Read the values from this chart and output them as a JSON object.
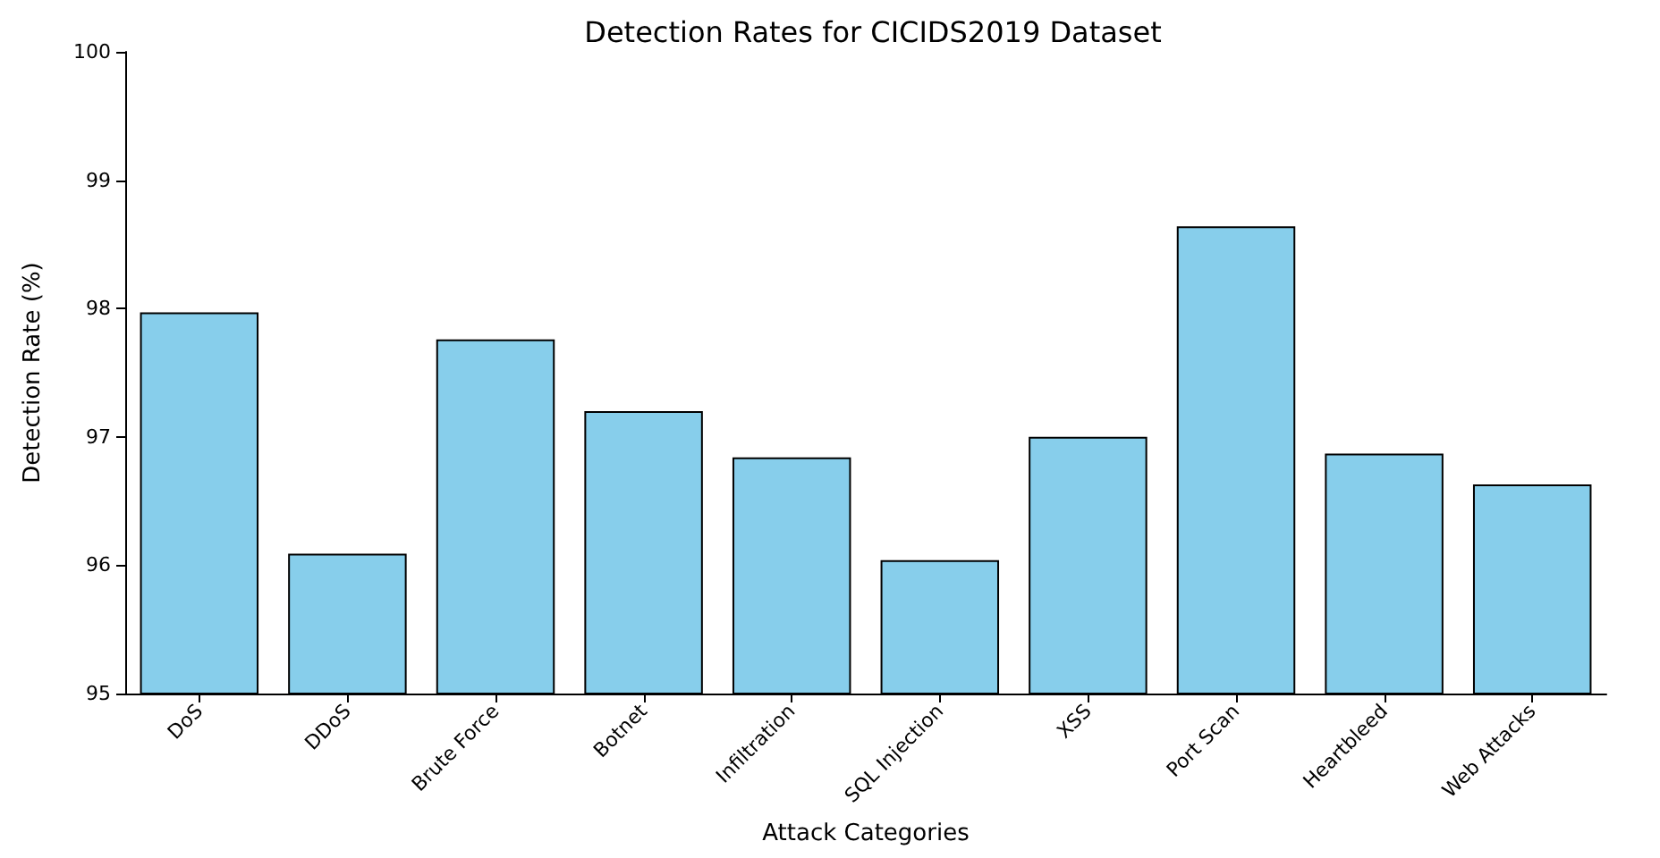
{
  "chart_data": {
    "type": "bar",
    "title": "Detection Rates for CICIDS2019 Dataset",
    "xlabel": "Attack Categories",
    "ylabel": "Detection Rate (%)",
    "categories": [
      "DoS",
      "DDoS",
      "Brute Force",
      "Botnet",
      "Infiltration",
      "SQL Injection",
      "XSS",
      "Port Scan",
      "Heartbleed",
      "Web Attacks"
    ],
    "values": [
      97.97,
      96.09,
      97.76,
      97.2,
      96.84,
      96.04,
      97.0,
      98.64,
      96.87,
      96.63
    ],
    "color": "#87ceeb",
    "ylim": [
      95,
      100
    ],
    "yticks": [
      95,
      96,
      97,
      98,
      99,
      100
    ],
    "grid": false
  }
}
